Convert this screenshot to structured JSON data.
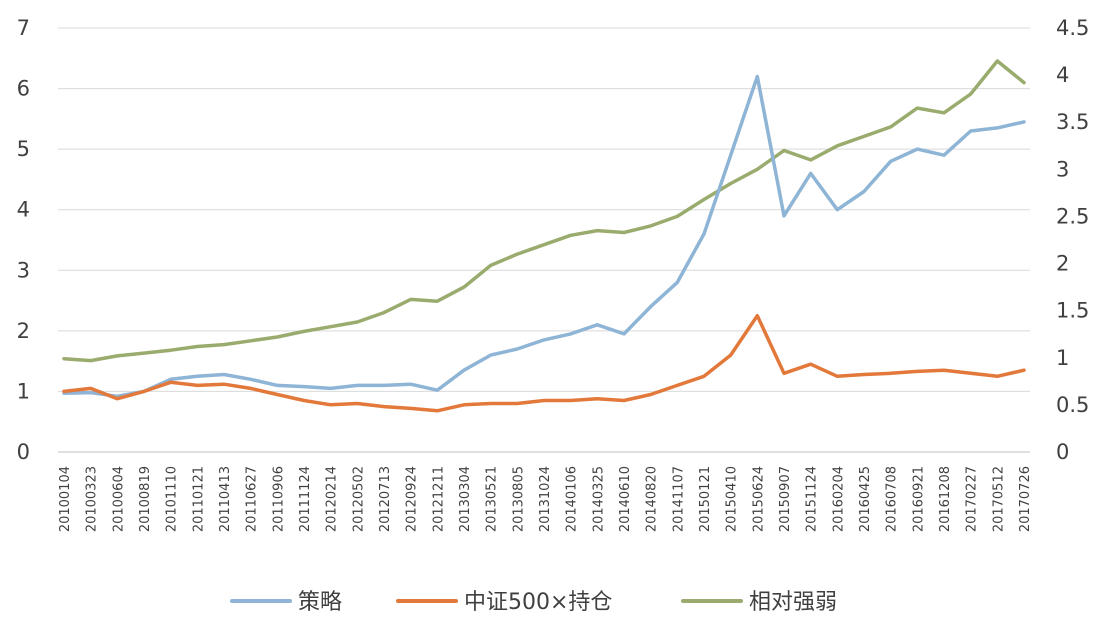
{
  "chart_data": {
    "type": "line",
    "title": "",
    "xlabel": "",
    "ylabel": "",
    "grid": true,
    "legend_position": "bottom",
    "x_ticks": [
      "20100104",
      "20100323",
      "20100604",
      "20100819",
      "20101110",
      "20110121",
      "20110413",
      "20110627",
      "20110906",
      "20111124",
      "20120214",
      "20120502",
      "20120713",
      "20120924",
      "20121211",
      "20130304",
      "20130521",
      "20130805",
      "20131024",
      "20140106",
      "20140325",
      "20140610",
      "20140820",
      "20141107",
      "20150121",
      "20150410",
      "20150624",
      "20150907",
      "20151124",
      "20160204",
      "20160425",
      "20160708",
      "20160921",
      "20161208",
      "20170227",
      "20170512",
      "20170726"
    ],
    "y_left": {
      "min": 0,
      "max": 7,
      "ticks": [
        "0",
        "1",
        "2",
        "3",
        "4",
        "5",
        "6",
        "7"
      ]
    },
    "y_right": {
      "min": 0,
      "max": 4.5,
      "ticks": [
        "0",
        "0.5",
        "1",
        "1.5",
        "2",
        "2.5",
        "3",
        "3.5",
        "4",
        "4.5"
      ]
    },
    "series": [
      {
        "name": "策略",
        "axis": "left",
        "color": "#8eb4d6",
        "x": [
          "20100104",
          "20100323",
          "20100604",
          "20100819",
          "20101110",
          "20110121",
          "20110413",
          "20110627",
          "20110906",
          "20111124",
          "20120214",
          "20120502",
          "20120713",
          "20120924",
          "20121211",
          "20130304",
          "20130521",
          "20130805",
          "20131024",
          "20140106",
          "20140325",
          "20140610",
          "20140820",
          "20141107",
          "20150121",
          "20150410",
          "20150624",
          "20150907",
          "20151124",
          "20160204",
          "20160425",
          "20160708",
          "20160921",
          "20161208",
          "20170227",
          "20170512",
          "20170726"
        ],
        "values": [
          0.97,
          0.98,
          0.92,
          1.0,
          1.2,
          1.25,
          1.28,
          1.2,
          1.1,
          1.08,
          1.05,
          1.1,
          1.1,
          1.12,
          1.02,
          1.35,
          1.6,
          1.7,
          1.85,
          1.95,
          2.1,
          1.95,
          2.4,
          2.8,
          3.6,
          4.9,
          6.2,
          3.9,
          4.6,
          4.0,
          4.3,
          4.8,
          5.0,
          4.9,
          5.3,
          5.35,
          5.45
        ]
      },
      {
        "name": "中证500×持仓",
        "axis": "left",
        "color": "#e2783a",
        "x": [
          "20100104",
          "20100323",
          "20100604",
          "20100819",
          "20101110",
          "20110121",
          "20110413",
          "20110627",
          "20110906",
          "20111124",
          "20120214",
          "20120502",
          "20120713",
          "20120924",
          "20121211",
          "20130304",
          "20130521",
          "20130805",
          "20131024",
          "20140106",
          "20140325",
          "20140610",
          "20140820",
          "20141107",
          "20150121",
          "20150410",
          "20150624",
          "20150907",
          "20151124",
          "20160204",
          "20160425",
          "20160708",
          "20160921",
          "20161208",
          "20170227",
          "20170512",
          "20170726"
        ],
        "values": [
          1.0,
          1.05,
          0.88,
          1.0,
          1.15,
          1.1,
          1.12,
          1.05,
          0.95,
          0.85,
          0.78,
          0.8,
          0.75,
          0.72,
          0.68,
          0.78,
          0.8,
          0.8,
          0.85,
          0.85,
          0.88,
          0.85,
          0.95,
          1.1,
          1.25,
          1.6,
          2.25,
          1.3,
          1.45,
          1.25,
          1.28,
          1.3,
          1.33,
          1.35,
          1.3,
          1.25,
          1.35
        ]
      },
      {
        "name": "相对强弱",
        "axis": "right",
        "color": "#9aab6e",
        "x": [
          "20100104",
          "20100323",
          "20100604",
          "20100819",
          "20101110",
          "20110121",
          "20110413",
          "20110627",
          "20110906",
          "20111124",
          "20120214",
          "20120502",
          "20120713",
          "20120924",
          "20121211",
          "20130304",
          "20130521",
          "20130805",
          "20131024",
          "20140106",
          "20140325",
          "20140610",
          "20140820",
          "20141107",
          "20150121",
          "20150410",
          "20150624",
          "20150907",
          "20151124",
          "20160204",
          "20160425",
          "20160708",
          "20160921",
          "20161208",
          "20170227",
          "20170512",
          "20170726"
        ],
        "values": [
          0.99,
          0.97,
          1.02,
          1.05,
          1.08,
          1.12,
          1.14,
          1.18,
          1.22,
          1.28,
          1.33,
          1.38,
          1.48,
          1.62,
          1.6,
          1.75,
          1.98,
          2.1,
          2.2,
          2.3,
          2.35,
          2.33,
          2.4,
          2.5,
          2.68,
          2.85,
          3.0,
          3.2,
          3.1,
          3.25,
          3.35,
          3.45,
          3.65,
          3.6,
          3.8,
          4.15,
          3.92
        ]
      }
    ]
  }
}
